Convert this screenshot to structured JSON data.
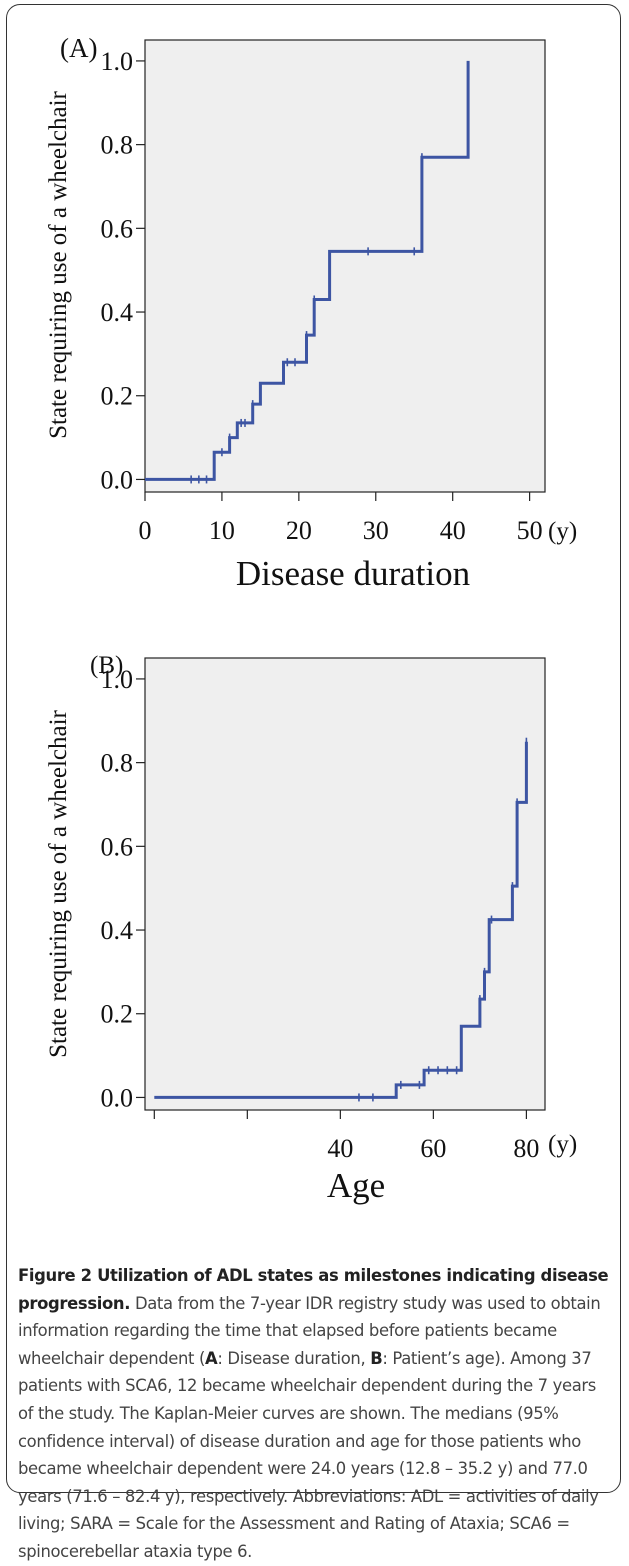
{
  "chart_data": [
    {
      "type": "line",
      "step": true,
      "panel_label": "(A)",
      "xlabel": "Disease duration",
      "ylabel": "State requiring use of a wheelchair",
      "x_unit": "(y)",
      "xlim": [
        0,
        52
      ],
      "ylim": [
        -0.03,
        1.05
      ],
      "x_ticks": [
        0,
        10,
        20,
        30,
        40,
        50
      ],
      "x_tick_labels": [
        "0",
        "10",
        "20",
        "30",
        "40",
        "50"
      ],
      "y_ticks": [
        0.0,
        0.2,
        0.4,
        0.6,
        0.8,
        1.0
      ],
      "y_tick_labels": [
        "0.0",
        "0.2",
        "0.4",
        "0.6",
        "0.8",
        "1.0"
      ],
      "colors": {
        "line": "#3d55a3",
        "plot_bg": "#efefef"
      },
      "series": [
        {
          "x": [
            0,
            9,
            11,
            12,
            14,
            15,
            18,
            21,
            22,
            24,
            36,
            42
          ],
          "y": [
            0.0,
            0.065,
            0.1,
            0.135,
            0.18,
            0.23,
            0.28,
            0.345,
            0.43,
            0.545,
            0.77,
            1.0
          ]
        }
      ],
      "censored": [
        {
          "x": 6,
          "y": 0.0
        },
        {
          "x": 7,
          "y": 0.0
        },
        {
          "x": 8,
          "y": 0.0
        },
        {
          "x": 10,
          "y": 0.065
        },
        {
          "x": 11,
          "y": 0.1
        },
        {
          "x": 12.5,
          "y": 0.135
        },
        {
          "x": 13,
          "y": 0.135
        },
        {
          "x": 14,
          "y": 0.18
        },
        {
          "x": 18.5,
          "y": 0.28
        },
        {
          "x": 19.5,
          "y": 0.28
        },
        {
          "x": 21,
          "y": 0.345
        },
        {
          "x": 22,
          "y": 0.43
        },
        {
          "x": 29,
          "y": 0.545
        },
        {
          "x": 35,
          "y": 0.545
        },
        {
          "x": 36,
          "y": 0.77
        }
      ]
    },
    {
      "type": "line",
      "step": true,
      "panel_label": "(B)",
      "xlabel": "Age",
      "ylabel": "State requiring use of a wheelchair",
      "x_unit": "(y)",
      "xlim": [
        -2,
        84
      ],
      "ylim": [
        -0.03,
        1.05
      ],
      "x_ticks": [
        0,
        20,
        40,
        60,
        80
      ],
      "x_tick_labels": [
        "",
        "",
        "40",
        "60",
        "80"
      ],
      "y_ticks": [
        0.0,
        0.2,
        0.4,
        0.6,
        0.8,
        1.0
      ],
      "y_tick_labels": [
        "0.0",
        "0.2",
        "0.4",
        "0.6",
        "0.8",
        "1.0"
      ],
      "colors": {
        "line": "#3d55a3",
        "plot_bg": "#efefef"
      },
      "series": [
        {
          "x": [
            0,
            52,
            58,
            66,
            70,
            71,
            72,
            77,
            78,
            80
          ],
          "y": [
            0.0,
            0.03,
            0.065,
            0.17,
            0.235,
            0.3,
            0.425,
            0.505,
            0.705,
            0.85
          ]
        }
      ],
      "censored": [
        {
          "x": 44,
          "y": 0.0
        },
        {
          "x": 47,
          "y": 0.0
        },
        {
          "x": 53,
          "y": 0.03
        },
        {
          "x": 57,
          "y": 0.03
        },
        {
          "x": 59,
          "y": 0.065
        },
        {
          "x": 61,
          "y": 0.065
        },
        {
          "x": 63,
          "y": 0.065
        },
        {
          "x": 65,
          "y": 0.065
        },
        {
          "x": 70,
          "y": 0.235
        },
        {
          "x": 71,
          "y": 0.3
        },
        {
          "x": 72.5,
          "y": 0.425
        },
        {
          "x": 77,
          "y": 0.505
        },
        {
          "x": 78,
          "y": 0.705
        },
        {
          "x": 80,
          "y": 0.85
        }
      ]
    }
  ],
  "caption": {
    "title": "Figure 2 Utilization of ADL states as milestones indicating disease progression.",
    "text_1": " Data from the 7-year IDR registry study was used to obtain information regarding the time that elapsed before patients became wheelchair dependent (",
    "label_a": "A",
    "text_2": ": Disease duration, ",
    "label_b": "B",
    "text_3": ": Patient’s age). Among 37 patients with SCA6, 12 became wheelchair dependent during the 7 years of the study. The Kaplan-Meier curves are shown. The medians (95% confidence interval) of disease duration and age for those patients who became wheelchair dependent were 24.0 years (12.8 – 35.2 y) and 77.0 years (71.6 – 82.4 y), respectively. Abbreviations: ADL = activities of daily living; SARA = Scale for the Assessment and Rating of Ataxia; SCA6 = spinocerebellar ataxia type 6."
  }
}
